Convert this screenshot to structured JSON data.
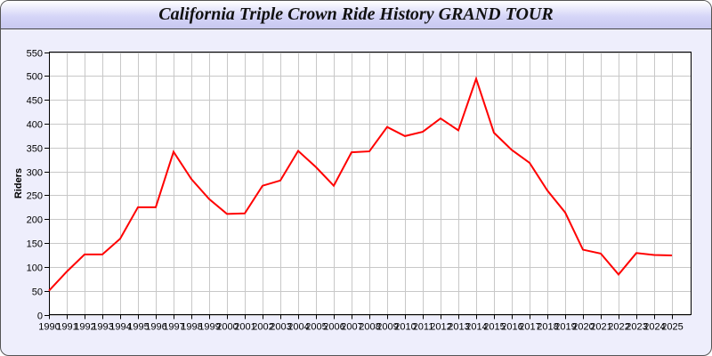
{
  "chart_data": {
    "type": "line",
    "title": "California Triple Crown Ride History GRAND TOUR",
    "xlabel": "",
    "ylabel": "Riders",
    "ylim": [
      0,
      550
    ],
    "yticks": [
      0,
      50,
      100,
      150,
      200,
      250,
      300,
      350,
      400,
      450,
      500,
      550
    ],
    "grid": true,
    "line_color": "#ff0000",
    "x": [
      "1990",
      "1991",
      "1992",
      "1993",
      "1994",
      "1995",
      "1996",
      "1997",
      "1998",
      "1999",
      "2000",
      "2001",
      "2002",
      "2003",
      "2004",
      "2005",
      "2006",
      "2007",
      "2008",
      "2009",
      "2010",
      "2011",
      "2012",
      "2013",
      "2014",
      "2015",
      "2016",
      "2017",
      "2018",
      "2019",
      "2020",
      "2021",
      "2022",
      "2023",
      "2024",
      "2025"
    ],
    "series": [
      {
        "values": [
          50,
          90,
          126,
          126,
          159,
          225,
          225,
          341,
          284,
          242,
          211,
          212,
          270,
          281,
          343,
          309,
          270,
          340,
          342,
          393,
          374,
          383,
          411,
          386,
          494,
          381,
          345,
          318,
          260,
          214,
          136,
          128,
          84,
          129,
          125,
          124
        ]
      }
    ]
  }
}
